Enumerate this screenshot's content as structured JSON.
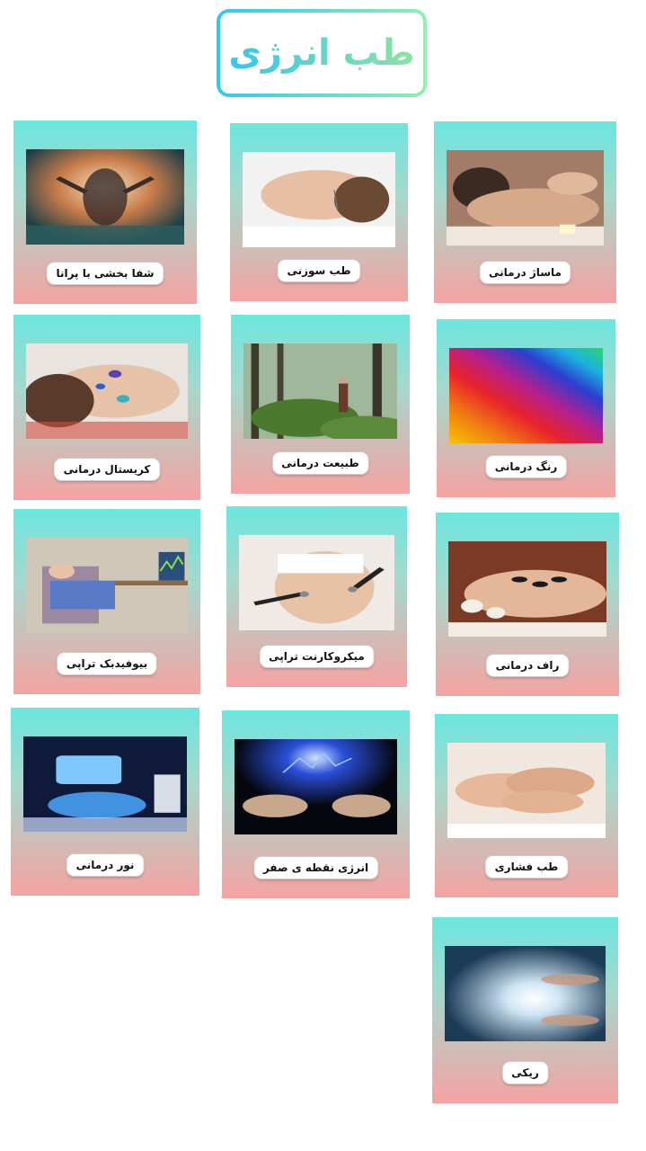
{
  "title": "طب انرژی",
  "cards": [
    {
      "label": "ماساژ درمانی",
      "image": "massage-photo"
    },
    {
      "label": "طب سوزنی",
      "image": "acupuncture-photo"
    },
    {
      "label": "شفا بخشی با پرانا",
      "image": "prana-healing-photo"
    },
    {
      "label": "رنگ درمانی",
      "image": "color-therapy-photo"
    },
    {
      "label": "طبیعت درمانی",
      "image": "nature-therapy-photo"
    },
    {
      "label": "کریستال درمانی",
      "image": "crystal-therapy-photo"
    },
    {
      "label": "راف درمانی",
      "image": "hot-stone-photo"
    },
    {
      "label": "میکروکارنت تراپی",
      "image": "microcurrent-photo"
    },
    {
      "label": "بیوفیدبک تراپی",
      "image": "biofeedback-photo"
    },
    {
      "label": "طب فشاری",
      "image": "acupressure-photo"
    },
    {
      "label": "انرژی نقطه ی صفر",
      "image": "zero-point-energy-photo"
    },
    {
      "label": "نور درمانی",
      "image": "light-therapy-photo"
    },
    {
      "label": "ریکی",
      "image": "reiki-photo"
    }
  ]
}
